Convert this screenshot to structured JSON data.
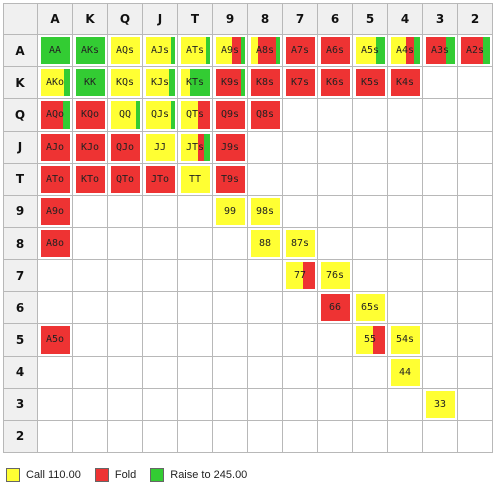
{
  "colors": {
    "call": "#ffff33",
    "fold": "#ee3333",
    "raise": "#33cc33",
    "empty": "#ffffff",
    "header_bg": "#f0f0f0"
  },
  "ranks": [
    "A",
    "K",
    "Q",
    "J",
    "T",
    "9",
    "8",
    "7",
    "6",
    "5",
    "4",
    "3",
    "2"
  ],
  "hands": [
    {
      "row": 0,
      "col": 0,
      "label": "AA",
      "call": 0,
      "fold": 0,
      "raise": 1
    },
    {
      "row": 0,
      "col": 1,
      "label": "AKs",
      "call": 0,
      "fold": 0,
      "raise": 1
    },
    {
      "row": 0,
      "col": 2,
      "label": "AQs",
      "call": 1,
      "fold": 0,
      "raise": 0
    },
    {
      "row": 0,
      "col": 3,
      "label": "AJs",
      "call": 0.85,
      "fold": 0,
      "raise": 0.15
    },
    {
      "row": 0,
      "col": 4,
      "label": "ATs",
      "call": 0.85,
      "fold": 0,
      "raise": 0.15
    },
    {
      "row": 0,
      "col": 5,
      "label": "A9s",
      "call": 0.55,
      "fold": 0.3,
      "raise": 0.15
    },
    {
      "row": 0,
      "col": 6,
      "label": "A8s",
      "call": 0.25,
      "fold": 0.6,
      "raise": 0.15
    },
    {
      "row": 0,
      "col": 7,
      "label": "A7s",
      "call": 0,
      "fold": 1,
      "raise": 0
    },
    {
      "row": 0,
      "col": 8,
      "label": "A6s",
      "call": 0,
      "fold": 1,
      "raise": 0
    },
    {
      "row": 0,
      "col": 9,
      "label": "A5s",
      "call": 0.7,
      "fold": 0,
      "raise": 0.3
    },
    {
      "row": 0,
      "col": 10,
      "label": "A4s",
      "call": 0.5,
      "fold": 0.3,
      "raise": 0.2
    },
    {
      "row": 0,
      "col": 11,
      "label": "A3s",
      "call": 0,
      "fold": 0.7,
      "raise": 0.3
    },
    {
      "row": 0,
      "col": 12,
      "label": "A2s",
      "call": 0,
      "fold": 0.75,
      "raise": 0.25
    },
    {
      "row": 1,
      "col": 0,
      "label": "AKo",
      "call": 0.8,
      "fold": 0,
      "raise": 0.2
    },
    {
      "row": 1,
      "col": 1,
      "label": "KK",
      "call": 0,
      "fold": 0,
      "raise": 1
    },
    {
      "row": 1,
      "col": 2,
      "label": "KQs",
      "call": 1,
      "fold": 0,
      "raise": 0
    },
    {
      "row": 1,
      "col": 3,
      "label": "KJs",
      "call": 0.8,
      "fold": 0,
      "raise": 0.2
    },
    {
      "row": 1,
      "col": 4,
      "label": "KTs",
      "call": 0.3,
      "fold": 0,
      "raise": 0.7
    },
    {
      "row": 1,
      "col": 5,
      "label": "K9s",
      "call": 0,
      "fold": 0.85,
      "raise": 0.15
    },
    {
      "row": 1,
      "col": 6,
      "label": "K8s",
      "call": 0,
      "fold": 1,
      "raise": 0
    },
    {
      "row": 1,
      "col": 7,
      "label": "K7s",
      "call": 0,
      "fold": 1,
      "raise": 0
    },
    {
      "row": 1,
      "col": 8,
      "label": "K6s",
      "call": 0,
      "fold": 1,
      "raise": 0
    },
    {
      "row": 1,
      "col": 9,
      "label": "K5s",
      "call": 0,
      "fold": 1,
      "raise": 0
    },
    {
      "row": 1,
      "col": 10,
      "label": "K4s",
      "call": 0,
      "fold": 1,
      "raise": 0
    },
    {
      "row": 2,
      "col": 0,
      "label": "AQo",
      "call": 0,
      "fold": 0.75,
      "raise": 0.25
    },
    {
      "row": 2,
      "col": 1,
      "label": "KQo",
      "call": 0,
      "fold": 1,
      "raise": 0
    },
    {
      "row": 2,
      "col": 2,
      "label": "QQ",
      "call": 0.85,
      "fold": 0,
      "raise": 0.15
    },
    {
      "row": 2,
      "col": 3,
      "label": "QJs",
      "call": 0.85,
      "fold": 0,
      "raise": 0.15
    },
    {
      "row": 2,
      "col": 4,
      "label": "QTs",
      "call": 0.6,
      "fold": 0.4,
      "raise": 0
    },
    {
      "row": 2,
      "col": 5,
      "label": "Q9s",
      "call": 0,
      "fold": 1,
      "raise": 0
    },
    {
      "row": 2,
      "col": 6,
      "label": "Q8s",
      "call": 0,
      "fold": 1,
      "raise": 0
    },
    {
      "row": 3,
      "col": 0,
      "label": "AJo",
      "call": 0,
      "fold": 1,
      "raise": 0
    },
    {
      "row": 3,
      "col": 1,
      "label": "KJo",
      "call": 0,
      "fold": 1,
      "raise": 0
    },
    {
      "row": 3,
      "col": 2,
      "label": "QJo",
      "call": 0,
      "fold": 1,
      "raise": 0
    },
    {
      "row": 3,
      "col": 3,
      "label": "JJ",
      "call": 1,
      "fold": 0,
      "raise": 0
    },
    {
      "row": 3,
      "col": 4,
      "label": "JTs",
      "call": 0.6,
      "fold": 0.2,
      "raise": 0.2
    },
    {
      "row": 3,
      "col": 5,
      "label": "J9s",
      "call": 0,
      "fold": 1,
      "raise": 0
    },
    {
      "row": 4,
      "col": 0,
      "label": "ATo",
      "call": 0,
      "fold": 1,
      "raise": 0
    },
    {
      "row": 4,
      "col": 1,
      "label": "KTo",
      "call": 0,
      "fold": 1,
      "raise": 0
    },
    {
      "row": 4,
      "col": 2,
      "label": "QTo",
      "call": 0,
      "fold": 1,
      "raise": 0
    },
    {
      "row": 4,
      "col": 3,
      "label": "JTo",
      "call": 0,
      "fold": 1,
      "raise": 0
    },
    {
      "row": 4,
      "col": 4,
      "label": "TT",
      "call": 1,
      "fold": 0,
      "raise": 0
    },
    {
      "row": 4,
      "col": 5,
      "label": "T9s",
      "call": 0,
      "fold": 1,
      "raise": 0
    },
    {
      "row": 5,
      "col": 0,
      "label": "A9o",
      "call": 0,
      "fold": 1,
      "raise": 0
    },
    {
      "row": 5,
      "col": 5,
      "label": "99",
      "call": 1,
      "fold": 0,
      "raise": 0
    },
    {
      "row": 5,
      "col": 6,
      "label": "98s",
      "call": 1,
      "fold": 0,
      "raise": 0
    },
    {
      "row": 6,
      "col": 0,
      "label": "A8o",
      "call": 0,
      "fold": 1,
      "raise": 0
    },
    {
      "row": 6,
      "col": 6,
      "label": "88",
      "call": 1,
      "fold": 0,
      "raise": 0
    },
    {
      "row": 6,
      "col": 7,
      "label": "87s",
      "call": 1,
      "fold": 0,
      "raise": 0
    },
    {
      "row": 7,
      "col": 7,
      "label": "77",
      "call": 0.6,
      "fold": 0.4,
      "raise": 0
    },
    {
      "row": 7,
      "col": 8,
      "label": "76s",
      "call": 1,
      "fold": 0,
      "raise": 0
    },
    {
      "row": 8,
      "col": 8,
      "label": "66",
      "call": 0,
      "fold": 1,
      "raise": 0
    },
    {
      "row": 8,
      "col": 9,
      "label": "65s",
      "call": 1,
      "fold": 0,
      "raise": 0
    },
    {
      "row": 9,
      "col": 0,
      "label": "A5o",
      "call": 0,
      "fold": 1,
      "raise": 0
    },
    {
      "row": 9,
      "col": 9,
      "label": "55",
      "call": 0.6,
      "fold": 0.4,
      "raise": 0
    },
    {
      "row": 9,
      "col": 10,
      "label": "54s",
      "call": 1,
      "fold": 0,
      "raise": 0
    },
    {
      "row": 10,
      "col": 10,
      "label": "44",
      "call": 1,
      "fold": 0,
      "raise": 0
    },
    {
      "row": 11,
      "col": 11,
      "label": "33",
      "call": 1,
      "fold": 0,
      "raise": 0
    }
  ],
  "legend": [
    {
      "key": "call",
      "label": "Call 110.00",
      "icon": "call-swatch"
    },
    {
      "key": "fold",
      "label": "Fold",
      "icon": "fold-swatch"
    },
    {
      "key": "raise",
      "label": "Raise to 245.00",
      "icon": "raise-swatch"
    }
  ]
}
